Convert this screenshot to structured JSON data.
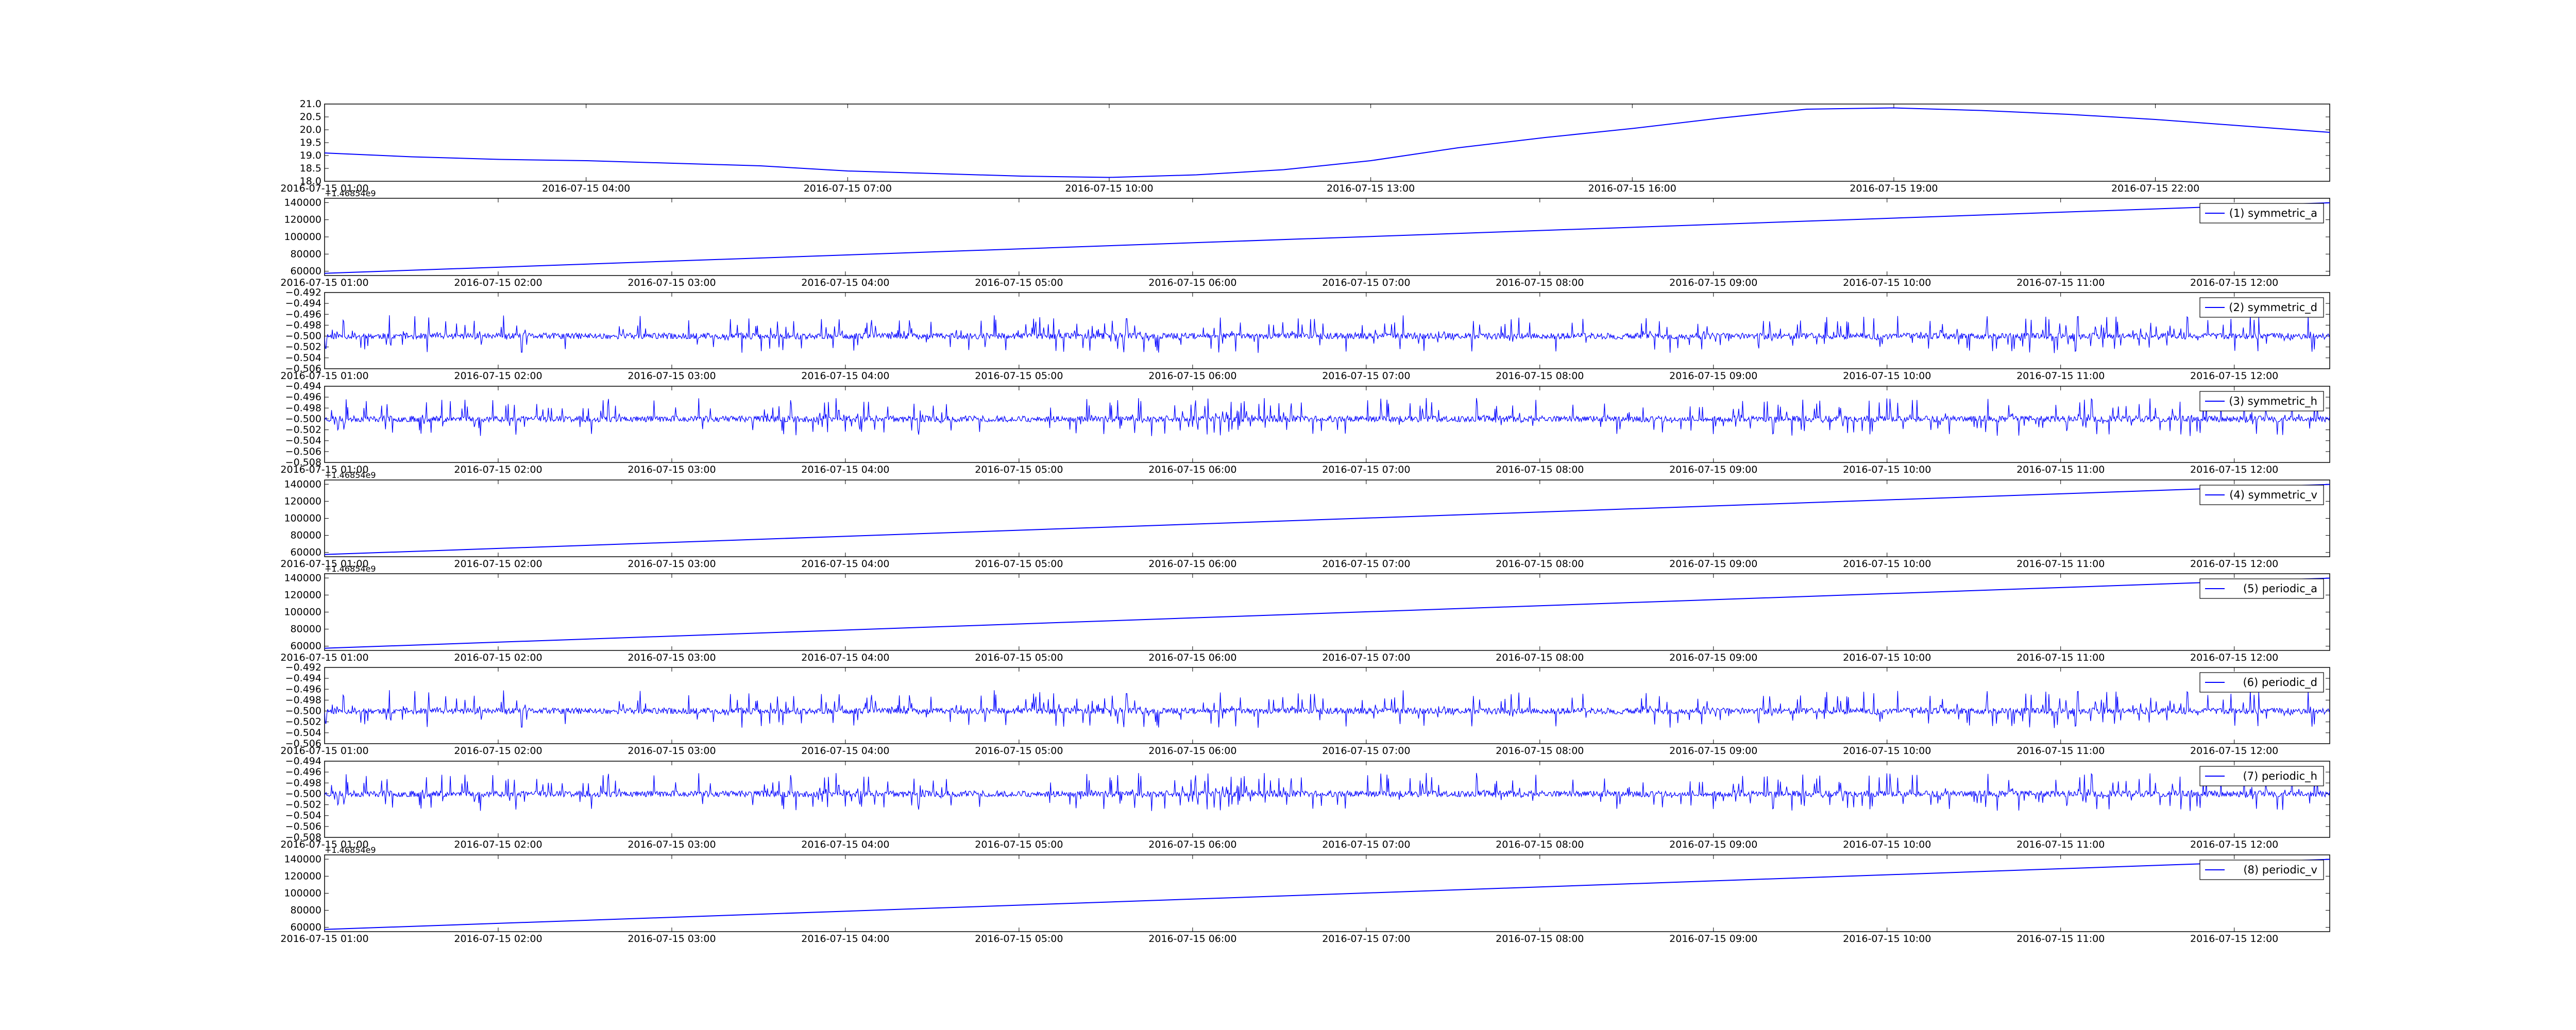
{
  "figure": {
    "background": "#ffffff",
    "line_color": "#0000ff"
  },
  "chart_data": [
    {
      "type": "line",
      "title": "",
      "xlabel": "",
      "ylabel": "",
      "ylim": [
        18.0,
        21.0
      ],
      "ytick_labels": [
        "18.0",
        "18.5",
        "19.0",
        "19.5",
        "20.0",
        "20.5",
        "21.0"
      ],
      "ytick_values": [
        18.0,
        18.5,
        19.0,
        19.5,
        20.0,
        20.5,
        21.0
      ],
      "x_start_label": "2016-07-15 01:00",
      "xtick_labels": [
        "2016-07-15 01:00",
        "2016-07-15 04:00",
        "2016-07-15 07:00",
        "2016-07-15 10:00",
        "2016-07-15 13:00",
        "2016-07-15 16:00",
        "2016-07-15 19:00",
        "2016-07-15 22:00"
      ],
      "x_hours": [
        1,
        4,
        7,
        10,
        13,
        16,
        19,
        22
      ],
      "x_range_hours": [
        1,
        24
      ],
      "series": [
        {
          "x_hours": [
            1,
            2,
            3,
            4,
            5,
            6,
            7,
            8,
            9,
            10,
            11,
            12,
            13,
            14,
            15,
            16,
            17,
            18,
            19,
            20,
            21,
            22,
            23,
            24
          ],
          "values": [
            19.1,
            18.95,
            18.85,
            18.8,
            18.7,
            18.6,
            18.4,
            18.3,
            18.2,
            18.15,
            18.25,
            18.45,
            18.8,
            19.3,
            19.7,
            20.05,
            20.45,
            20.8,
            20.85,
            20.75,
            20.6,
            20.4,
            20.15,
            19.9
          ]
        }
      ]
    },
    {
      "type": "line",
      "kind": "ramp",
      "ylim": [
        55000,
        145000
      ],
      "ytick_values": [
        60000,
        80000,
        100000,
        120000,
        140000
      ],
      "ytick_labels": [
        "60000",
        "80000",
        "100000",
        "120000",
        "140000"
      ],
      "offset_label": "+1.46854e9",
      "xtick_labels": [
        "2016-07-15 01:00",
        "2016-07-15 02:00",
        "2016-07-15 03:00",
        "2016-07-15 04:00",
        "2016-07-15 05:00",
        "2016-07-15 06:00",
        "2016-07-15 07:00",
        "2016-07-15 08:00",
        "2016-07-15 09:00",
        "2016-07-15 10:00",
        "2016-07-15 11:00",
        "2016-07-15 12:00"
      ],
      "x_hours": [
        1,
        2,
        3,
        4,
        5,
        6,
        7,
        8,
        9,
        10,
        11,
        12
      ],
      "x_range_hours": [
        1,
        12.55
      ],
      "series": [
        {
          "name": "(1) symmetric_a",
          "x_hours": [
            1,
            12.55
          ],
          "values": [
            57600,
            139800
          ]
        }
      ]
    },
    {
      "type": "line",
      "kind": "noise",
      "ylim": [
        -0.506,
        -0.492
      ],
      "ytick_values": [
        -0.506,
        -0.504,
        -0.502,
        -0.5,
        -0.498,
        -0.496,
        -0.494,
        -0.492
      ],
      "ytick_labels": [
        "−0.506",
        "−0.504",
        "−0.502",
        "−0.500",
        "−0.498",
        "−0.496",
        "−0.494",
        "−0.492"
      ],
      "xtick_labels": [
        "2016-07-15 01:00",
        "2016-07-15 02:00",
        "2016-07-15 03:00",
        "2016-07-15 04:00",
        "2016-07-15 05:00",
        "2016-07-15 06:00",
        "2016-07-15 07:00",
        "2016-07-15 08:00",
        "2016-07-15 09:00",
        "2016-07-15 10:00",
        "2016-07-15 11:00",
        "2016-07-15 12:00"
      ],
      "x_hours": [
        1,
        2,
        3,
        4,
        5,
        6,
        7,
        8,
        9,
        10,
        11,
        12
      ],
      "x_range_hours": [
        1,
        12.55
      ],
      "series": [
        {
          "name": "(2) symmetric_d",
          "center": -0.5,
          "seed": 11
        }
      ]
    },
    {
      "type": "line",
      "kind": "noise",
      "ylim": [
        -0.508,
        -0.494
      ],
      "ytick_values": [
        -0.508,
        -0.506,
        -0.504,
        -0.502,
        -0.5,
        -0.498,
        -0.496,
        -0.494
      ],
      "ytick_labels": [
        "−0.508",
        "−0.506",
        "−0.504",
        "−0.502",
        "−0.500",
        "−0.498",
        "−0.496",
        "−0.494"
      ],
      "xtick_labels": [
        "2016-07-15 01:00",
        "2016-07-15 02:00",
        "2016-07-15 03:00",
        "2016-07-15 04:00",
        "2016-07-15 05:00",
        "2016-07-15 06:00",
        "2016-07-15 07:00",
        "2016-07-15 08:00",
        "2016-07-15 09:00",
        "2016-07-15 10:00",
        "2016-07-15 11:00",
        "2016-07-15 12:00"
      ],
      "x_hours": [
        1,
        2,
        3,
        4,
        5,
        6,
        7,
        8,
        9,
        10,
        11,
        12
      ],
      "x_range_hours": [
        1,
        12.55
      ],
      "series": [
        {
          "name": "(3) symmetric_h",
          "center": -0.5,
          "seed": 23
        }
      ]
    },
    {
      "type": "line",
      "kind": "ramp",
      "ylim": [
        55000,
        145000
      ],
      "ytick_values": [
        60000,
        80000,
        100000,
        120000,
        140000
      ],
      "ytick_labels": [
        "60000",
        "80000",
        "100000",
        "120000",
        "140000"
      ],
      "offset_label": "+1.46854e9",
      "xtick_labels": [
        "2016-07-15 01:00",
        "2016-07-15 02:00",
        "2016-07-15 03:00",
        "2016-07-15 04:00",
        "2016-07-15 05:00",
        "2016-07-15 06:00",
        "2016-07-15 07:00",
        "2016-07-15 08:00",
        "2016-07-15 09:00",
        "2016-07-15 10:00",
        "2016-07-15 11:00",
        "2016-07-15 12:00"
      ],
      "x_hours": [
        1,
        2,
        3,
        4,
        5,
        6,
        7,
        8,
        9,
        10,
        11,
        12
      ],
      "x_range_hours": [
        1,
        12.55
      ],
      "series": [
        {
          "name": "(4) symmetric_v",
          "x_hours": [
            1,
            12.55
          ],
          "values": [
            57600,
            139800
          ]
        }
      ]
    },
    {
      "type": "line",
      "kind": "ramp",
      "ylim": [
        55000,
        145000
      ],
      "ytick_values": [
        60000,
        80000,
        100000,
        120000,
        140000
      ],
      "ytick_labels": [
        "60000",
        "80000",
        "100000",
        "120000",
        "140000"
      ],
      "offset_label": "+1.46854e9",
      "xtick_labels": [
        "2016-07-15 01:00",
        "2016-07-15 02:00",
        "2016-07-15 03:00",
        "2016-07-15 04:00",
        "2016-07-15 05:00",
        "2016-07-15 06:00",
        "2016-07-15 07:00",
        "2016-07-15 08:00",
        "2016-07-15 09:00",
        "2016-07-15 10:00",
        "2016-07-15 11:00",
        "2016-07-15 12:00"
      ],
      "x_hours": [
        1,
        2,
        3,
        4,
        5,
        6,
        7,
        8,
        9,
        10,
        11,
        12
      ],
      "x_range_hours": [
        1,
        12.55
      ],
      "series": [
        {
          "name": "(5) periodic_a",
          "x_hours": [
            1,
            12.55
          ],
          "values": [
            57600,
            139800
          ]
        }
      ]
    },
    {
      "type": "line",
      "kind": "noise",
      "ylim": [
        -0.506,
        -0.492
      ],
      "ytick_values": [
        -0.506,
        -0.504,
        -0.502,
        -0.5,
        -0.498,
        -0.496,
        -0.494,
        -0.492
      ],
      "ytick_labels": [
        "−0.506",
        "−0.504",
        "−0.502",
        "−0.500",
        "−0.498",
        "−0.496",
        "−0.494",
        "−0.492"
      ],
      "xtick_labels": [
        "2016-07-15 01:00",
        "2016-07-15 02:00",
        "2016-07-15 03:00",
        "2016-07-15 04:00",
        "2016-07-15 05:00",
        "2016-07-15 06:00",
        "2016-07-15 07:00",
        "2016-07-15 08:00",
        "2016-07-15 09:00",
        "2016-07-15 10:00",
        "2016-07-15 11:00",
        "2016-07-15 12:00"
      ],
      "x_hours": [
        1,
        2,
        3,
        4,
        5,
        6,
        7,
        8,
        9,
        10,
        11,
        12
      ],
      "x_range_hours": [
        1,
        12.55
      ],
      "series": [
        {
          "name": "(6) periodic_d",
          "center": -0.5,
          "seed": 11
        }
      ]
    },
    {
      "type": "line",
      "kind": "noise",
      "ylim": [
        -0.508,
        -0.494
      ],
      "ytick_values": [
        -0.508,
        -0.506,
        -0.504,
        -0.502,
        -0.5,
        -0.498,
        -0.496,
        -0.494
      ],
      "ytick_labels": [
        "−0.508",
        "−0.506",
        "−0.504",
        "−0.502",
        "−0.500",
        "−0.498",
        "−0.496",
        "−0.494"
      ],
      "xtick_labels": [
        "2016-07-15 01:00",
        "2016-07-15 02:00",
        "2016-07-15 03:00",
        "2016-07-15 04:00",
        "2016-07-15 05:00",
        "2016-07-15 06:00",
        "2016-07-15 07:00",
        "2016-07-15 08:00",
        "2016-07-15 09:00",
        "2016-07-15 10:00",
        "2016-07-15 11:00",
        "2016-07-15 12:00"
      ],
      "x_hours": [
        1,
        2,
        3,
        4,
        5,
        6,
        7,
        8,
        9,
        10,
        11,
        12
      ],
      "x_range_hours": [
        1,
        12.55
      ],
      "series": [
        {
          "name": "(7) periodic_h",
          "center": -0.5,
          "seed": 23
        }
      ]
    },
    {
      "type": "line",
      "kind": "ramp",
      "ylim": [
        55000,
        145000
      ],
      "ytick_values": [
        60000,
        80000,
        100000,
        120000,
        140000
      ],
      "ytick_labels": [
        "60000",
        "80000",
        "100000",
        "120000",
        "140000"
      ],
      "offset_label": "+1.46854e9",
      "xtick_labels": [
        "2016-07-15 01:00",
        "2016-07-15 02:00",
        "2016-07-15 03:00",
        "2016-07-15 04:00",
        "2016-07-15 05:00",
        "2016-07-15 06:00",
        "2016-07-15 07:00",
        "2016-07-15 08:00",
        "2016-07-15 09:00",
        "2016-07-15 10:00",
        "2016-07-15 11:00",
        "2016-07-15 12:00"
      ],
      "x_hours": [
        1,
        2,
        3,
        4,
        5,
        6,
        7,
        8,
        9,
        10,
        11,
        12
      ],
      "x_range_hours": [
        1,
        12.55
      ],
      "series": [
        {
          "name": "(8) periodic_v",
          "x_hours": [
            1,
            12.55
          ],
          "values": [
            57600,
            139800
          ]
        }
      ]
    }
  ]
}
